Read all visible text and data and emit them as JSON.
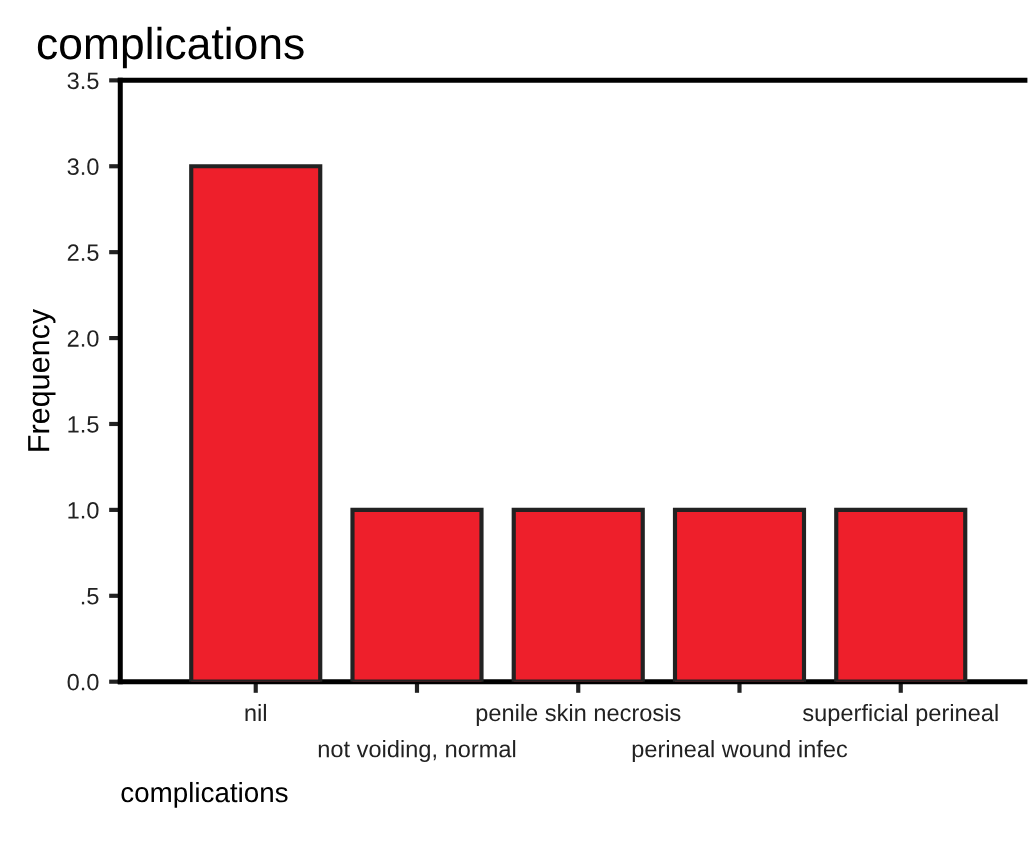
{
  "chart_data": {
    "type": "bar",
    "title": "complications",
    "xlabel": "complications",
    "ylabel": "Frequency",
    "categories": [
      "nil",
      "not voiding, normal",
      "penile skin necrosis",
      "perineal wound infec",
      "superficial perineal"
    ],
    "values": [
      3,
      1,
      1,
      1,
      1
    ],
    "color": "#ee1f2b",
    "ylim": [
      0,
      3.5
    ],
    "yticks": [
      {
        "value": 0,
        "label": "0.0"
      },
      {
        "value": 0.5,
        "label": ".5"
      },
      {
        "value": 1,
        "label": "1.0"
      },
      {
        "value": 1.5,
        "label": "1.5"
      },
      {
        "value": 2,
        "label": "2.0"
      },
      {
        "value": 2.5,
        "label": "2.5"
      },
      {
        "value": 3,
        "label": "3.0"
      },
      {
        "value": 3.5,
        "label": "3.5"
      }
    ],
    "grid": false,
    "legend": false
  }
}
